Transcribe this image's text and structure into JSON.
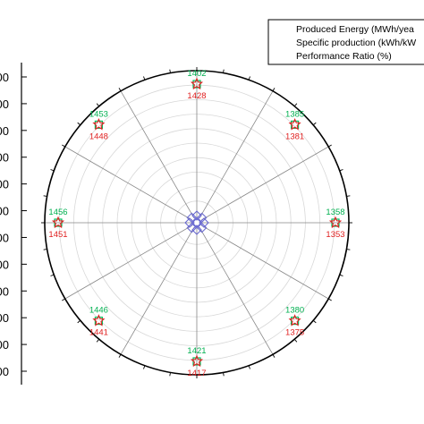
{
  "chart_data": {
    "type": "scatter",
    "subtype": "polar",
    "title": "",
    "directions": [
      0,
      45,
      90,
      135,
      180,
      225,
      270,
      315
    ],
    "series": [
      {
        "name": "Produced Energy (MWh/yea",
        "marker": "square",
        "color": "#00c060",
        "labels": [
          "1402",
          "1385",
          "1358",
          "1380",
          "1421",
          "1446",
          "1456",
          "1453"
        ]
      },
      {
        "name": "Specific production (kWh/kW",
        "marker": "star",
        "color": "#e02020",
        "labels": [
          "1428",
          "1381",
          "1353",
          "1375",
          "1417",
          "1441",
          "1451",
          "1448"
        ]
      },
      {
        "name": "Performance Ratio (%)",
        "marker": "diamond",
        "color": "#6a6ad0",
        "labels": []
      }
    ],
    "left_axis_tick_labels": [
      "00",
      "00",
      "00",
      "00",
      "00",
      "00",
      "00",
      "00",
      "00",
      "00",
      "00",
      "00"
    ],
    "grid": true,
    "legend_position": "top-right"
  }
}
